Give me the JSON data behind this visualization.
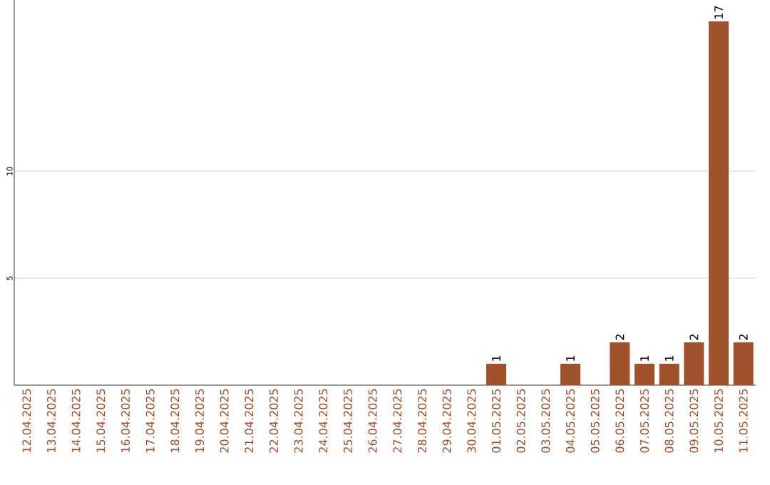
{
  "chart_data": {
    "type": "bar",
    "categories": [
      "12.04.2025",
      "13.04.2025",
      "14.04.2025",
      "15.04.2025",
      "16.04.2025",
      "17.04.2025",
      "18.04.2025",
      "19.04.2025",
      "20.04.2025",
      "21.04.2025",
      "22.04.2025",
      "23.04.2025",
      "24.04.2025",
      "25.04.2025",
      "26.04.2025",
      "27.04.2025",
      "28.04.2025",
      "29.04.2025",
      "30.04.2025",
      "01.05.2025",
      "02.05.2025",
      "03.05.2025",
      "04.05.2025",
      "05.05.2025",
      "06.05.2025",
      "07.05.2025",
      "08.05.2025",
      "09.05.2025",
      "10.05.2025",
      "11.05.2025"
    ],
    "values": [
      0,
      0,
      0,
      0,
      0,
      0,
      0,
      0,
      0,
      0,
      0,
      0,
      0,
      0,
      0,
      0,
      0,
      0,
      0,
      1,
      0,
      0,
      1,
      0,
      2,
      1,
      1,
      2,
      17,
      2
    ],
    "value_labels": [
      null,
      null,
      null,
      null,
      null,
      null,
      null,
      null,
      null,
      null,
      null,
      null,
      null,
      null,
      null,
      null,
      null,
      null,
      null,
      "1",
      null,
      null,
      "1",
      null,
      "2",
      "1",
      "1",
      "2",
      "17",
      "2"
    ],
    "color": "#a0522d",
    "ylim": [
      0,
      18
    ],
    "yticks": [
      5,
      10
    ],
    "grid": "y"
  }
}
